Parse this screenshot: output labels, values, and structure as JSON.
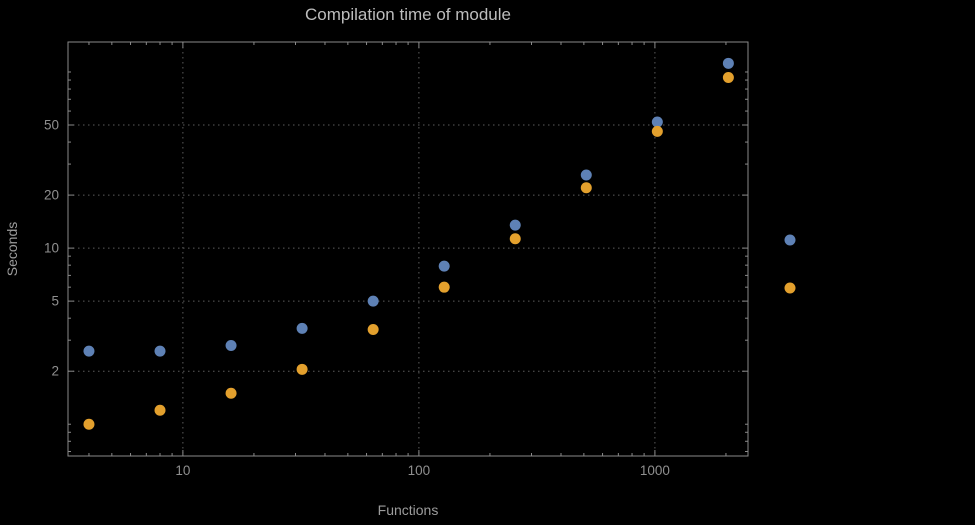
{
  "chart_data": {
    "type": "scatter",
    "title": "Compilation time of module",
    "xlabel": "Functions",
    "ylabel": "Seconds",
    "xscale": "log",
    "yscale": "log",
    "xlim": [
      3.26,
      2480
    ],
    "ylim": [
      0.66,
      148
    ],
    "x_ticks": [
      10,
      100,
      1000
    ],
    "y_ticks": [
      2,
      5,
      10,
      20,
      50
    ],
    "grid": true,
    "x": [
      4,
      8,
      16,
      32,
      64,
      128,
      256,
      512,
      1024,
      2048
    ],
    "series": [
      {
        "name": "blue",
        "color": "#5e81b5",
        "values": [
          2.6,
          2.6,
          2.8,
          3.5,
          5.0,
          7.9,
          13.5,
          26,
          52,
          112
        ]
      },
      {
        "name": "orange",
        "color": "#e3a02d",
        "values": [
          1.0,
          1.2,
          1.5,
          2.05,
          3.45,
          6.0,
          11.3,
          22,
          46,
          93
        ]
      }
    ],
    "legend": {
      "position": "outside-right",
      "entries": [
        {
          "series": "blue",
          "color": "#5e81b5"
        },
        {
          "series": "orange",
          "color": "#e3a02d"
        }
      ]
    },
    "colors": {
      "background": "#000000",
      "title": "#bdbdbd",
      "axis_label": "#9c9c9c",
      "tick_label": "#8f8f8f",
      "frame": "#8a8a8a",
      "grid": "#5c5c5c"
    }
  }
}
